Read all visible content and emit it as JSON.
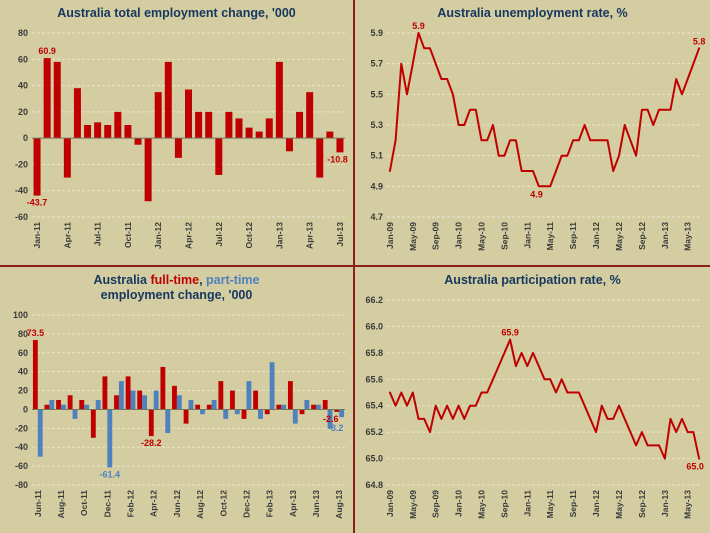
{
  "colors": {
    "background": "#d3cda1",
    "panel_border": "#8b2016",
    "series_red": "#c00000",
    "series_blue": "#4f81bd",
    "grid": "#ebe5c6",
    "axis_line": "#75755a",
    "axis_text": "#3a3a3a",
    "title_text": "#17375e"
  },
  "chart_data": [
    {
      "type": "bar",
      "title": "Australia total employment change, '000",
      "ylabel": "'000",
      "ylim": [
        -60,
        80
      ],
      "ytick_step": 20,
      "ytick_decimals": 0,
      "tick_step": 3,
      "grid": true,
      "legend": "none",
      "categories": [
        "Jan-11",
        "Feb-11",
        "Mar-11",
        "Apr-11",
        "May-11",
        "Jun-11",
        "Jul-11",
        "Aug-11",
        "Sep-11",
        "Oct-11",
        "Nov-11",
        "Dec-11",
        "Jan-12",
        "Feb-12",
        "Mar-12",
        "Apr-12",
        "May-12",
        "Jun-12",
        "Jul-12",
        "Aug-12",
        "Sep-12",
        "Oct-12",
        "Nov-12",
        "Dec-12",
        "Jan-13",
        "Feb-13",
        "Mar-13",
        "Apr-13",
        "May-13",
        "Jun-13",
        "Jul-13"
      ],
      "values": [
        -43.7,
        60.9,
        58,
        -30,
        38,
        10,
        12,
        10,
        20,
        10,
        -5,
        -48,
        35,
        58,
        -15,
        37,
        20,
        20,
        -28,
        20,
        15,
        8,
        5,
        15,
        58,
        -10,
        20,
        35,
        -30,
        5,
        -10.8
      ],
      "annotations": [
        {
          "label": "-43.7",
          "index": 0,
          "placement": "below",
          "color": "red"
        },
        {
          "label": "60.9",
          "index": 1,
          "placement": "above",
          "color": "red"
        },
        {
          "label": "-10.8",
          "index": 30,
          "placement": "below",
          "color": "red"
        }
      ]
    },
    {
      "type": "line",
      "title": "Australia unemployment rate, %",
      "ylabel": "%",
      "ylim": [
        4.7,
        5.9
      ],
      "ytick_step": 0.2,
      "ytick_decimals": 1,
      "tick_step": 4,
      "grid": true,
      "legend": "none",
      "categories": [
        "Jan-09",
        "Feb-09",
        "Mar-09",
        "Apr-09",
        "May-09",
        "Jun-09",
        "Jul-09",
        "Aug-09",
        "Sep-09",
        "Oct-09",
        "Nov-09",
        "Dec-09",
        "Jan-10",
        "Feb-10",
        "Mar-10",
        "Apr-10",
        "May-10",
        "Jun-10",
        "Jul-10",
        "Aug-10",
        "Sep-10",
        "Oct-10",
        "Nov-10",
        "Dec-10",
        "Jan-11",
        "Feb-11",
        "Mar-11",
        "Apr-11",
        "May-11",
        "Jun-11",
        "Jul-11",
        "Aug-11",
        "Sep-11",
        "Oct-11",
        "Nov-11",
        "Dec-11",
        "Jan-12",
        "Feb-12",
        "Mar-12",
        "Apr-12",
        "May-12",
        "Jun-12",
        "Jul-12",
        "Aug-12",
        "Sep-12",
        "Oct-12",
        "Nov-12",
        "Dec-12",
        "Jan-13",
        "Feb-13",
        "Mar-13",
        "Apr-13",
        "May-13",
        "Jun-13",
        "Jul-13"
      ],
      "values": [
        5.0,
        5.2,
        5.7,
        5.5,
        5.7,
        5.9,
        5.8,
        5.8,
        5.7,
        5.6,
        5.6,
        5.5,
        5.3,
        5.3,
        5.4,
        5.4,
        5.2,
        5.2,
        5.3,
        5.1,
        5.1,
        5.2,
        5.2,
        5.0,
        5.0,
        5.0,
        4.9,
        4.9,
        4.9,
        5.0,
        5.1,
        5.1,
        5.2,
        5.2,
        5.3,
        5.2,
        5.2,
        5.2,
        5.2,
        5.0,
        5.1,
        5.3,
        5.2,
        5.1,
        5.4,
        5.4,
        5.3,
        5.4,
        5.4,
        5.4,
        5.6,
        5.5,
        5.6,
        5.7,
        5.8
      ],
      "annotations": [
        {
          "label": "5.9",
          "index": 5,
          "placement": "above",
          "color": "red"
        },
        {
          "label": "4.9",
          "index": 27,
          "placement": "below",
          "color": "red",
          "dx": -8
        },
        {
          "label": "5.8",
          "index": 54,
          "placement": "above",
          "color": "red"
        }
      ]
    },
    {
      "type": "bar2",
      "title_parts": {
        "prefix": "Australia ",
        "fulltime": "full-time",
        "comma": ", ",
        "parttime": "part-time",
        "line2": "employment change, '000"
      },
      "ylabel": "'000",
      "ylim": [
        -80,
        100
      ],
      "ytick_step": 20,
      "ytick_decimals": 0,
      "tick_step": 2,
      "grid": true,
      "legend": "in-title",
      "categories": [
        "Jun-11",
        "Jul-11",
        "Aug-11",
        "Sep-11",
        "Oct-11",
        "Nov-11",
        "Dec-11",
        "Jan-12",
        "Feb-12",
        "Mar-12",
        "Apr-12",
        "May-12",
        "Jun-12",
        "Jul-12",
        "Aug-12",
        "Sep-12",
        "Oct-12",
        "Nov-12",
        "Dec-12",
        "Jan-13",
        "Feb-13",
        "Mar-13",
        "Apr-13",
        "May-13",
        "Jun-13",
        "Jul-13",
        "Aug-13"
      ],
      "series": [
        {
          "name": "full-time",
          "color": "#c00000",
          "values": [
            73.5,
            5,
            10,
            15,
            10,
            -30,
            35,
            15,
            35,
            20,
            -28.2,
            45,
            25,
            -15,
            5,
            5,
            30,
            20,
            -10,
            20,
            -5,
            5,
            30,
            -5,
            5,
            10,
            -2.6
          ]
        },
        {
          "name": "part-time",
          "color": "#4f81bd",
          "values": [
            -50,
            10,
            5,
            -10,
            5,
            10,
            -61.4,
            30,
            20,
            15,
            20,
            -25,
            15,
            10,
            -5,
            10,
            -10,
            -5,
            30,
            -10,
            50,
            5,
            -15,
            10,
            5,
            -20,
            -8.2
          ]
        }
      ],
      "annotations": [
        {
          "label": "73.5",
          "index": 0,
          "series": 0,
          "placement": "above",
          "color": "red"
        },
        {
          "label": "-61.4",
          "index": 6,
          "series": 1,
          "placement": "below",
          "color": "blue"
        },
        {
          "label": "-28.2",
          "index": 10,
          "series": 0,
          "placement": "below",
          "color": "red"
        },
        {
          "label": "-2.6",
          "index": 26,
          "series": 0,
          "placement": "below",
          "color": "red",
          "dx": -6
        },
        {
          "label": "-8.2",
          "index": 26,
          "series": 1,
          "placement": "below",
          "color": "blue",
          "dx": -6,
          "dy": 4
        }
      ]
    },
    {
      "type": "line",
      "title": "Australia participation rate, %",
      "ylabel": "%",
      "ylim": [
        64.8,
        66.2
      ],
      "ytick_step": 0.2,
      "ytick_decimals": 1,
      "tick_step": 4,
      "grid": true,
      "legend": "none",
      "categories": [
        "Jan-09",
        "Feb-09",
        "Mar-09",
        "Apr-09",
        "May-09",
        "Jun-09",
        "Jul-09",
        "Aug-09",
        "Sep-09",
        "Oct-09",
        "Nov-09",
        "Dec-09",
        "Jan-10",
        "Feb-10",
        "Mar-10",
        "Apr-10",
        "May-10",
        "Jun-10",
        "Jul-10",
        "Aug-10",
        "Sep-10",
        "Oct-10",
        "Nov-10",
        "Dec-10",
        "Jan-11",
        "Feb-11",
        "Mar-11",
        "Apr-11",
        "May-11",
        "Jun-11",
        "Jul-11",
        "Aug-11",
        "Sep-11",
        "Oct-11",
        "Nov-11",
        "Dec-11",
        "Jan-12",
        "Feb-12",
        "Mar-12",
        "Apr-12",
        "May-12",
        "Jun-12",
        "Jul-12",
        "Aug-12",
        "Sep-12",
        "Oct-12",
        "Nov-12",
        "Dec-12",
        "Jan-13",
        "Feb-13",
        "Mar-13",
        "Apr-13",
        "May-13",
        "Jun-13",
        "Jul-13"
      ],
      "values": [
        65.5,
        65.4,
        65.5,
        65.4,
        65.5,
        65.3,
        65.3,
        65.2,
        65.4,
        65.3,
        65.4,
        65.3,
        65.4,
        65.3,
        65.4,
        65.4,
        65.5,
        65.5,
        65.6,
        65.7,
        65.8,
        65.9,
        65.7,
        65.8,
        65.7,
        65.8,
        65.7,
        65.6,
        65.6,
        65.5,
        65.6,
        65.5,
        65.5,
        65.5,
        65.4,
        65.3,
        65.2,
        65.4,
        65.3,
        65.3,
        65.4,
        65.3,
        65.2,
        65.1,
        65.2,
        65.1,
        65.1,
        65.1,
        65.0,
        65.3,
        65.2,
        65.3,
        65.2,
        65.2,
        65.0
      ],
      "annotations": [
        {
          "label": "65.9",
          "index": 21,
          "placement": "above",
          "color": "red"
        },
        {
          "label": "65.0",
          "index": 54,
          "placement": "below",
          "color": "red",
          "dx": -4
        }
      ]
    }
  ]
}
